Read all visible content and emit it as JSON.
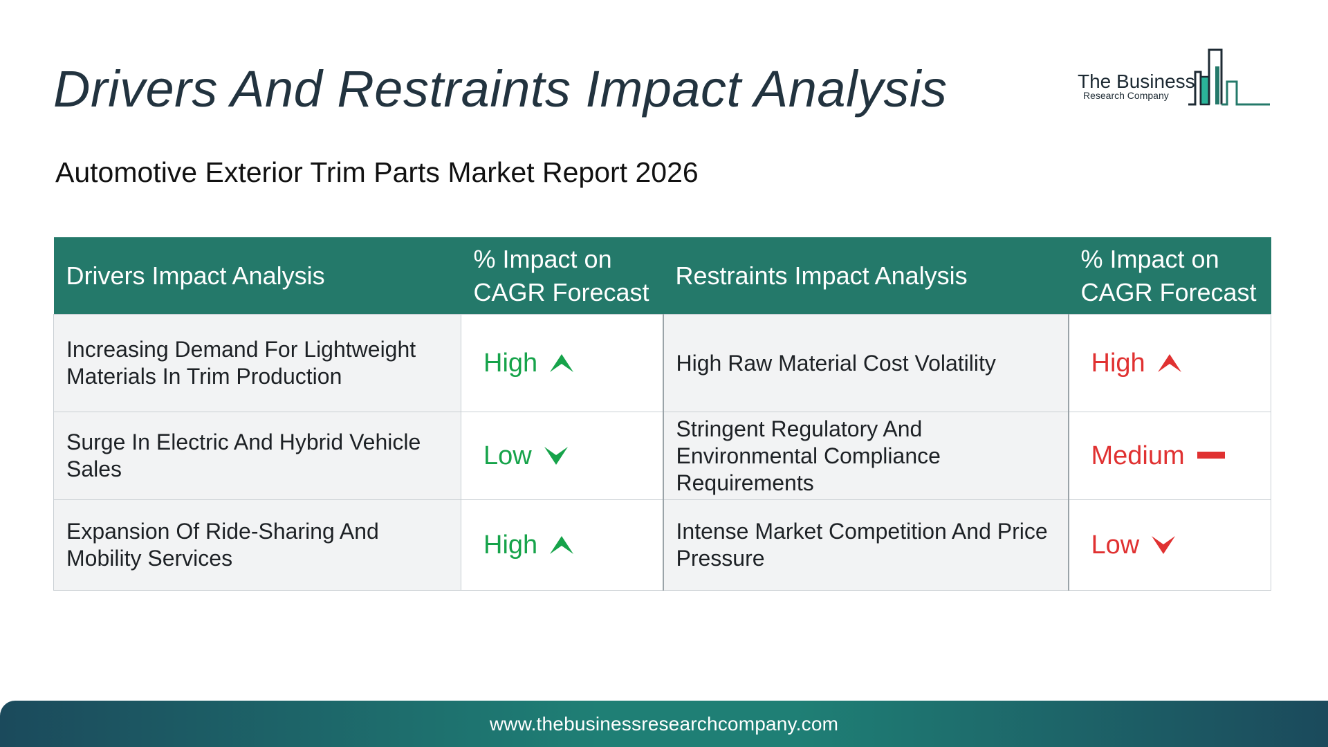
{
  "header": {
    "title": "Drivers And Restraints Impact Analysis",
    "subtitle": "Automotive Exterior Trim Parts Market Report 2026"
  },
  "logo": {
    "line1": "The Business",
    "line2": "Research Company",
    "icon": "bar-chart-logo-icon",
    "colors": {
      "dark": "#1d2a33",
      "teal": "#24796a",
      "accent": "#2bb59a"
    }
  },
  "table": {
    "headers": {
      "drivers": "Drivers Impact Analysis",
      "drivers_impact": "% Impact on CAGR Forecast",
      "restraints": "Restraints Impact Analysis",
      "restraints_impact": "% Impact on CAGR Forecast"
    },
    "header_color": "#24796a",
    "rows": [
      {
        "driver": "Increasing Demand For Lightweight Materials In Trim Production",
        "driver_impact": "High",
        "driver_icon": "arrow-up-icon",
        "restraint": "High Raw Material Cost Volatility",
        "restraint_impact": "High",
        "restraint_icon": "arrow-up-icon"
      },
      {
        "driver": "Surge In Electric And Hybrid Vehicle Sales",
        "driver_impact": "Low",
        "driver_icon": "arrow-down-icon",
        "restraint": "Stringent Regulatory And Environmental Compliance Requirements",
        "restraint_impact": "Medium",
        "restraint_icon": "dash-icon"
      },
      {
        "driver": "Expansion Of Ride-Sharing And Mobility Services",
        "driver_impact": "High",
        "driver_icon": "arrow-up-icon",
        "restraint": "Intense Market Competition And Price Pressure",
        "restraint_impact": "Low",
        "restraint_icon": "arrow-down-icon"
      }
    ],
    "driver_color": "#16a34a",
    "restraint_color": "#e03131"
  },
  "footer": {
    "url": "www.thebusinessresearchcompany.com"
  }
}
